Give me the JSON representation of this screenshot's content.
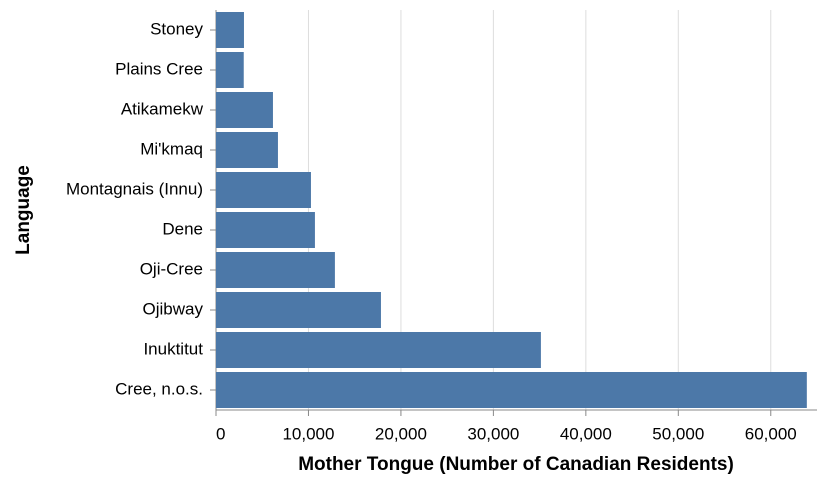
{
  "chart_data": {
    "type": "bar",
    "orientation": "horizontal",
    "categories": [
      "Stoney",
      "Plains Cree",
      "Atikamekw",
      "Mi'kmaq",
      "Montagnais (Innu)",
      "Dene",
      "Oji-Cree",
      "Ojibway",
      "Inuktitut",
      "Cree, n.o.s."
    ],
    "values": [
      3025,
      3000,
      6160,
      6700,
      10270,
      10700,
      12860,
      17840,
      35140,
      63900
    ],
    "color": "#4c78a8",
    "x_label": "Mother Tongue (Number of Canadian Residents)",
    "y_label": "Language",
    "xlim": [
      0,
      65000
    ],
    "xticks": [
      0,
      {
        "value": 10000,
        "label": "10,000"
      },
      {
        "value": 20000,
        "label": "20,000"
      },
      {
        "value": 30000,
        "label": "30,000"
      },
      {
        "value": 40000,
        "label": "40,000"
      },
      {
        "value": 50000,
        "label": "50,000"
      },
      {
        "value": 60000,
        "label": "60,000"
      }
    ],
    "grid": true
  }
}
